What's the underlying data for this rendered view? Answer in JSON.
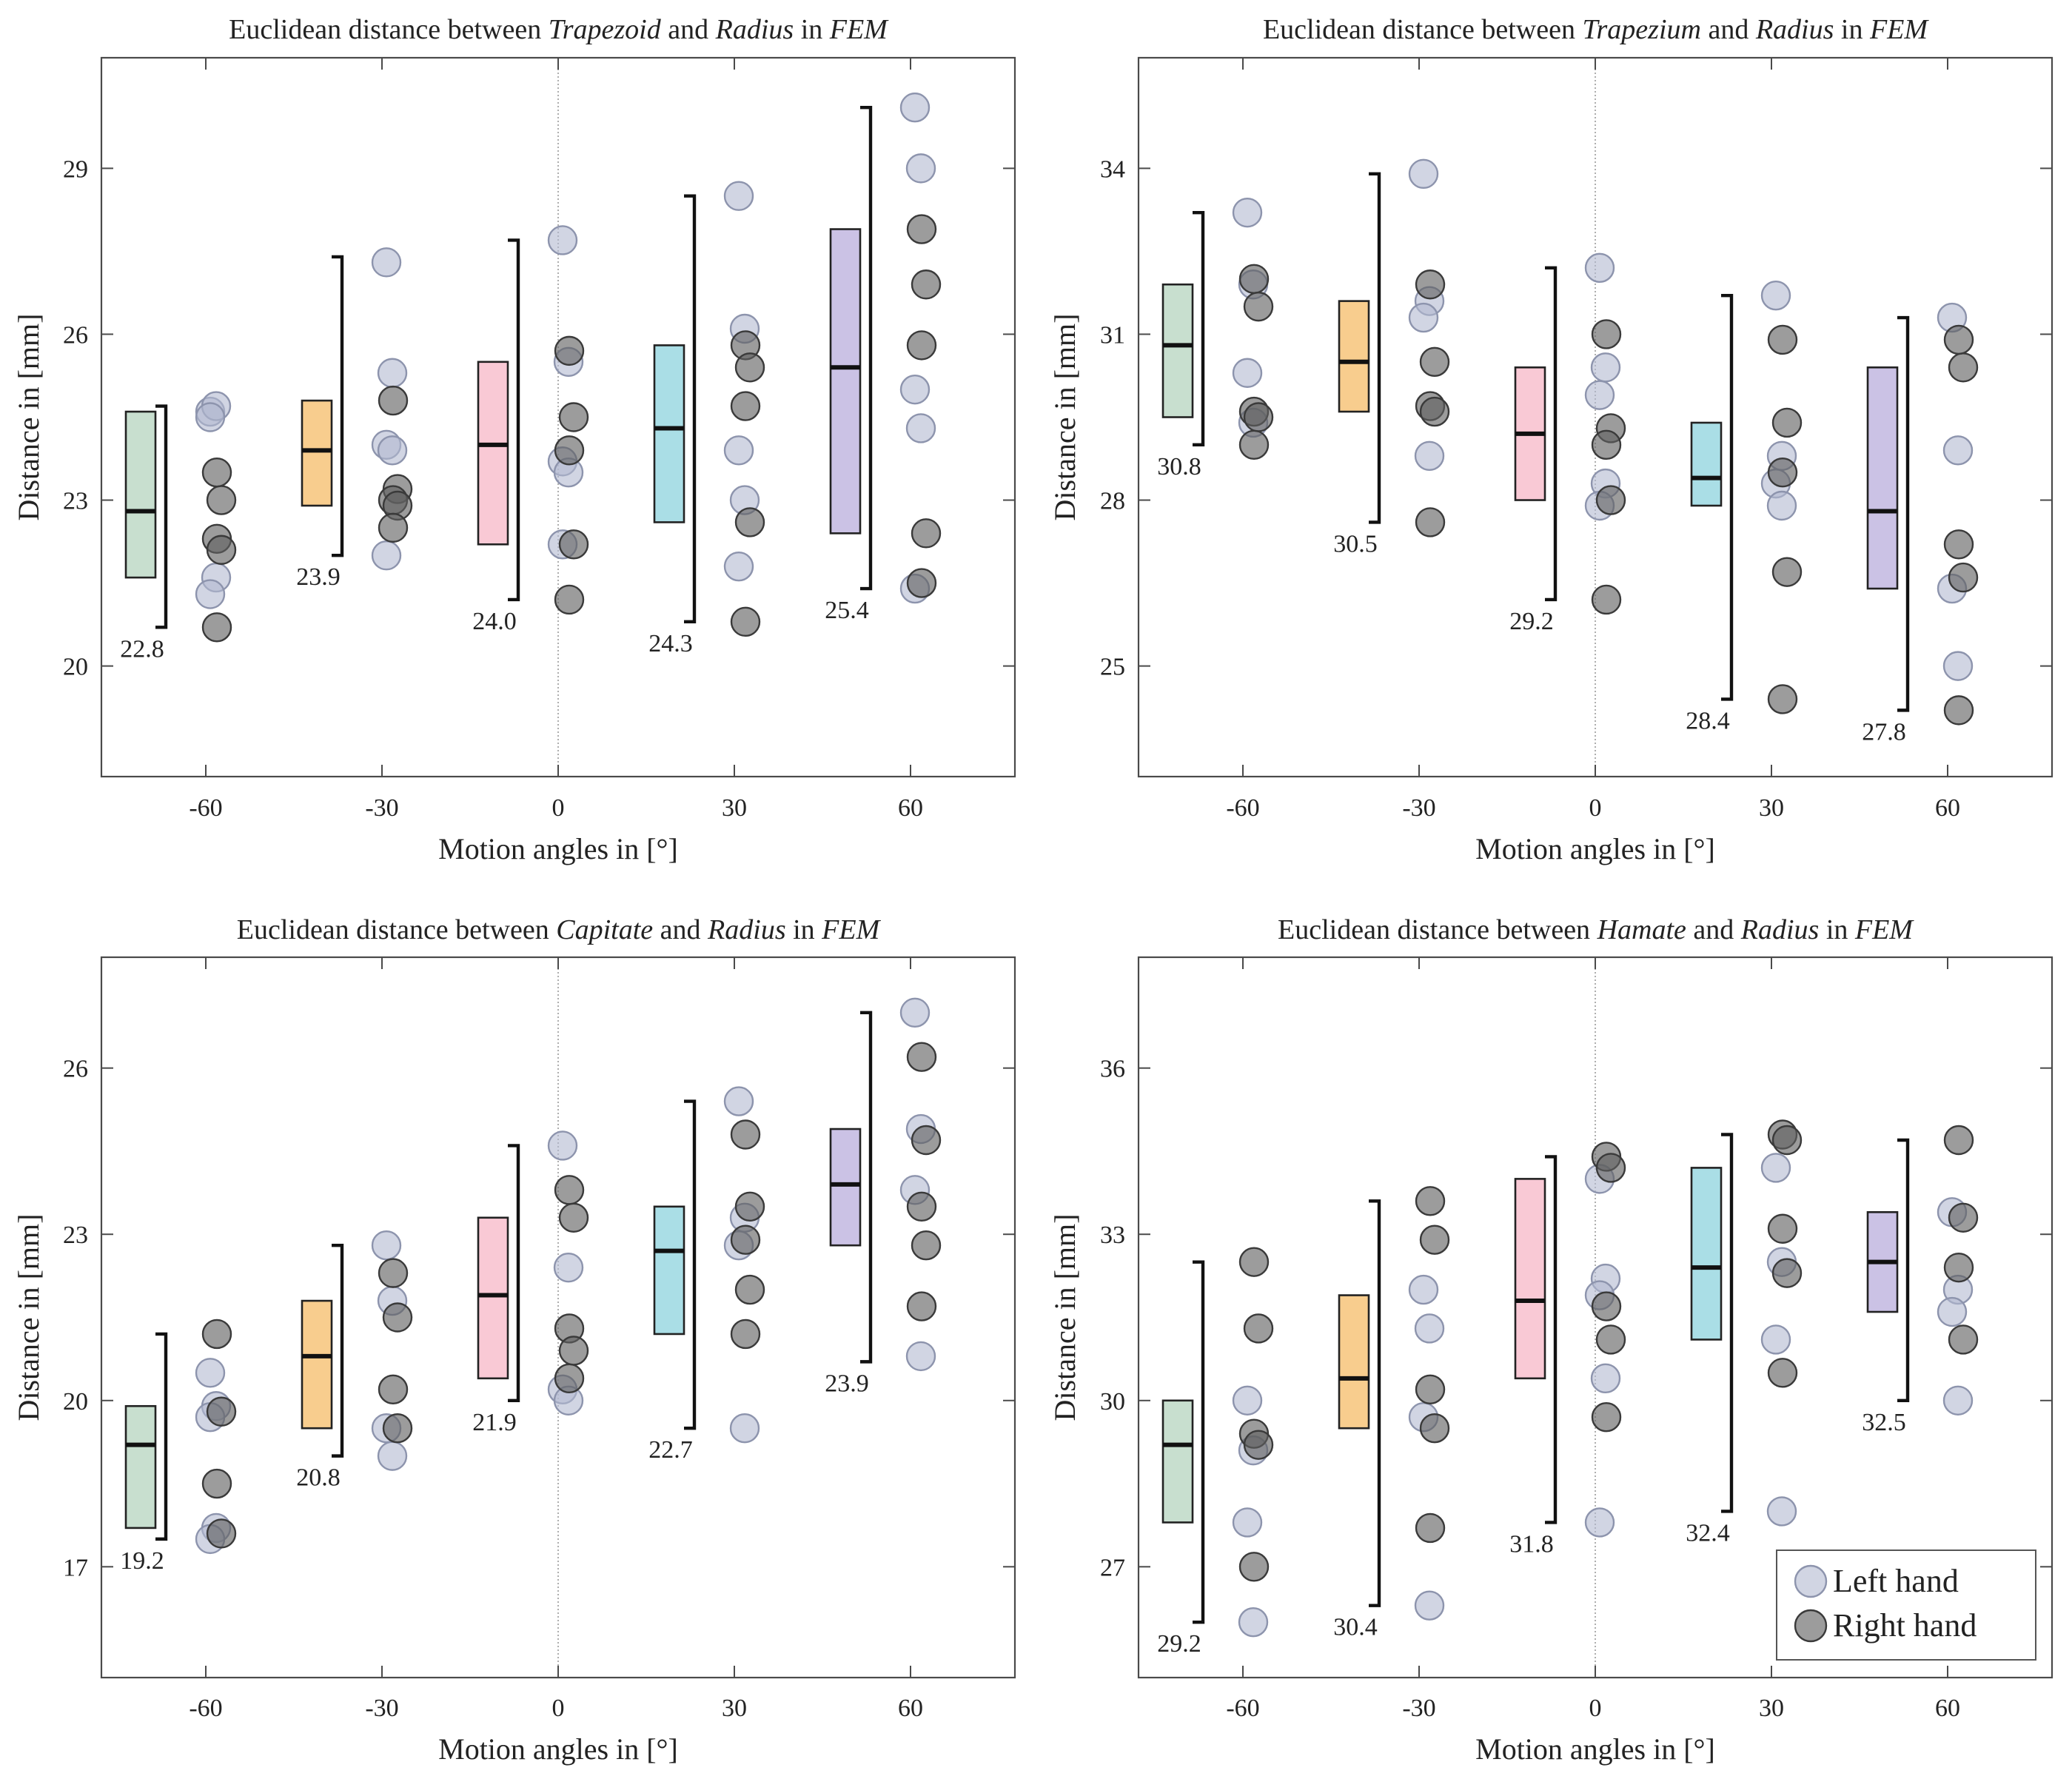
{
  "chart_data": [
    {
      "type": "box-strip",
      "title": {
        "prefix": "Euclidean distance between ",
        "bone": "Trapezoid",
        "mid": " and ",
        "ref": "Radius",
        "in": " in ",
        "model": "FEM"
      },
      "xlabel": "Motion angles in [°]",
      "ylabel": "Distance in [mm]",
      "xticks": [
        -60,
        -30,
        0,
        30,
        60
      ],
      "yticks": [
        20,
        23,
        26,
        29
      ],
      "ylim": [
        18,
        31
      ],
      "groups": [
        {
          "angle": -60,
          "color": "#c8dfcf",
          "q1": 21.6,
          "q3": 24.6,
          "median": 22.8,
          "wlow": 20.7,
          "whigh": 24.7,
          "label": "22.8",
          "left": [
            24.6,
            24.7,
            24.5,
            21.6,
            21.3
          ],
          "right": [
            23.5,
            23.0,
            22.3,
            22.1,
            20.7
          ]
        },
        {
          "angle": -30,
          "color": "#f8cd8e",
          "q1": 22.9,
          "q3": 24.8,
          "median": 23.9,
          "wlow": 22.0,
          "whigh": 27.4,
          "label": "23.9",
          "left": [
            27.3,
            25.3,
            24.0,
            23.9,
            22.0
          ],
          "right": [
            24.8,
            23.2,
            23.0,
            22.9,
            22.5
          ]
        },
        {
          "angle": 0,
          "color": "#f9c9d5",
          "q1": 22.2,
          "q3": 25.5,
          "median": 24.0,
          "wlow": 21.2,
          "whigh": 27.7,
          "label": "24.0",
          "left": [
            27.7,
            25.5,
            23.7,
            23.5,
            22.2
          ],
          "right": [
            25.7,
            24.5,
            23.9,
            22.2,
            21.2
          ]
        },
        {
          "angle": 30,
          "color": "#aadee6",
          "q1": 22.6,
          "q3": 25.8,
          "median": 24.3,
          "wlow": 20.8,
          "whigh": 28.5,
          "label": "24.3",
          "left": [
            28.5,
            26.1,
            23.9,
            23.0,
            21.8
          ],
          "right": [
            25.8,
            25.4,
            24.7,
            22.6,
            20.8
          ]
        },
        {
          "angle": 60,
          "color": "#cbc2e5",
          "q1": 22.4,
          "q3": 27.9,
          "median": 25.4,
          "wlow": 21.4,
          "whigh": 30.1,
          "label": "25.4",
          "left": [
            30.1,
            29.0,
            25.0,
            24.3,
            21.4
          ],
          "right": [
            27.9,
            26.9,
            25.8,
            22.4,
            21.5
          ]
        }
      ]
    },
    {
      "type": "box-strip",
      "title": {
        "prefix": "Euclidean distance between ",
        "bone": "Trapezium",
        "mid": " and ",
        "ref": "Radius",
        "in": " in ",
        "model": "FEM"
      },
      "xlabel": "Motion angles in [°]",
      "ylabel": "Distance in [mm]",
      "xticks": [
        -60,
        -30,
        0,
        30,
        60
      ],
      "yticks": [
        25,
        28,
        31,
        34
      ],
      "ylim": [
        23,
        36
      ],
      "groups": [
        {
          "angle": -60,
          "color": "#c8dfcf",
          "q1": 29.5,
          "q3": 31.9,
          "median": 30.8,
          "wlow": 29.0,
          "whigh": 33.2,
          "label": "30.8",
          "left": [
            33.2,
            31.9,
            30.3,
            29.4
          ],
          "right": [
            32.0,
            31.5,
            29.6,
            29.5,
            29.0
          ]
        },
        {
          "angle": -30,
          "color": "#f8cd8e",
          "q1": 29.6,
          "q3": 31.6,
          "median": 30.5,
          "wlow": 27.6,
          "whigh": 33.9,
          "label": "30.5",
          "left": [
            33.9,
            31.6,
            31.3,
            28.8
          ],
          "right": [
            31.9,
            30.5,
            29.7,
            29.6,
            27.6
          ]
        },
        {
          "angle": 0,
          "color": "#f9c9d5",
          "q1": 28.0,
          "q3": 30.4,
          "median": 29.2,
          "wlow": 26.2,
          "whigh": 32.2,
          "label": "29.2",
          "left": [
            32.2,
            30.4,
            29.9,
            28.3,
            27.9
          ],
          "right": [
            31.0,
            29.3,
            29.0,
            28.0,
            26.2
          ]
        },
        {
          "angle": 30,
          "color": "#aadee6",
          "q1": 27.9,
          "q3": 29.4,
          "median": 28.4,
          "wlow": 24.4,
          "whigh": 31.7,
          "label": "28.4",
          "left": [
            31.7,
            28.8,
            28.3,
            27.9
          ],
          "right": [
            30.9,
            29.4,
            28.5,
            26.7,
            24.4
          ]
        },
        {
          "angle": 60,
          "color": "#cbc2e5",
          "q1": 26.4,
          "q3": 30.4,
          "median": 27.8,
          "wlow": 24.2,
          "whigh": 31.3,
          "label": "27.8",
          "left": [
            31.3,
            28.9,
            26.4,
            25.0
          ],
          "right": [
            30.9,
            30.4,
            27.2,
            26.6,
            24.2
          ]
        }
      ]
    },
    {
      "type": "box-strip",
      "title": {
        "prefix": "Euclidean distance between ",
        "bone": "Capitate",
        "mid": " and ",
        "ref": "Radius",
        "in": " in ",
        "model": "FEM"
      },
      "xlabel": "Motion angles in [°]",
      "ylabel": "Distance in [mm]",
      "xticks": [
        -60,
        -30,
        0,
        30,
        60
      ],
      "yticks": [
        17,
        20,
        23,
        26
      ],
      "ylim": [
        15,
        28
      ],
      "groups": [
        {
          "angle": -60,
          "color": "#c8dfcf",
          "q1": 17.7,
          "q3": 19.9,
          "median": 19.2,
          "wlow": 17.5,
          "whigh": 21.2,
          "label": "19.2",
          "left": [
            20.5,
            19.9,
            19.7,
            17.7,
            17.5
          ],
          "right": [
            21.2,
            19.8,
            18.5,
            17.6
          ]
        },
        {
          "angle": -30,
          "color": "#f8cd8e",
          "q1": 19.5,
          "q3": 21.8,
          "median": 20.8,
          "wlow": 19.0,
          "whigh": 22.8,
          "label": "20.8",
          "left": [
            22.8,
            21.8,
            19.5,
            19.0
          ],
          "right": [
            22.3,
            21.5,
            20.2,
            19.5
          ]
        },
        {
          "angle": 0,
          "color": "#f9c9d5",
          "q1": 20.4,
          "q3": 23.3,
          "median": 21.9,
          "wlow": 20.0,
          "whigh": 24.6,
          "label": "21.9",
          "left": [
            24.6,
            22.4,
            20.2,
            20.0
          ],
          "right": [
            23.8,
            23.3,
            21.3,
            20.9,
            20.4
          ]
        },
        {
          "angle": 30,
          "color": "#aadee6",
          "q1": 21.2,
          "q3": 23.5,
          "median": 22.7,
          "wlow": 19.5,
          "whigh": 25.4,
          "label": "22.7",
          "left": [
            25.4,
            23.3,
            22.8,
            19.5
          ],
          "right": [
            24.8,
            23.5,
            22.9,
            22.0,
            21.2
          ]
        },
        {
          "angle": 60,
          "color": "#cbc2e5",
          "q1": 22.8,
          "q3": 24.9,
          "median": 23.9,
          "wlow": 20.7,
          "whigh": 27.0,
          "label": "23.9",
          "left": [
            27.0,
            24.9,
            23.8,
            20.8
          ],
          "right": [
            26.2,
            24.7,
            23.5,
            22.8,
            21.7
          ]
        }
      ]
    },
    {
      "type": "box-strip",
      "title": {
        "prefix": "Euclidean distance between ",
        "bone": "Hamate",
        "mid": " and ",
        "ref": "Radius",
        "in": " in ",
        "model": "FEM"
      },
      "xlabel": "Motion angles in [°]",
      "ylabel": "Distance in [mm]",
      "xticks": [
        -60,
        -30,
        0,
        30,
        60
      ],
      "yticks": [
        27,
        30,
        33,
        36
      ],
      "ylim": [
        25,
        38
      ],
      "legend": {
        "position": "bottom-right",
        "entries": [
          "Left hand",
          "Right hand"
        ]
      },
      "groups": [
        {
          "angle": -60,
          "color": "#c8dfcf",
          "q1": 27.8,
          "q3": 30.0,
          "median": 29.2,
          "wlow": 26.0,
          "whigh": 32.5,
          "label": "29.2",
          "left": [
            30.0,
            29.1,
            27.8,
            26.0
          ],
          "right": [
            32.5,
            31.3,
            29.4,
            29.2,
            27.0
          ]
        },
        {
          "angle": -30,
          "color": "#f8cd8e",
          "q1": 29.5,
          "q3": 31.9,
          "median": 30.4,
          "wlow": 26.3,
          "whigh": 33.6,
          "label": "30.4",
          "left": [
            32.0,
            31.3,
            29.7,
            26.3
          ],
          "right": [
            33.6,
            32.9,
            30.2,
            29.5,
            27.7
          ]
        },
        {
          "angle": 0,
          "color": "#f9c9d5",
          "q1": 30.4,
          "q3": 34.0,
          "median": 31.8,
          "wlow": 27.8,
          "whigh": 34.4,
          "label": "31.8",
          "left": [
            34.0,
            32.2,
            31.9,
            30.4,
            27.8
          ],
          "right": [
            34.4,
            34.2,
            31.7,
            31.1,
            29.7
          ]
        },
        {
          "angle": 30,
          "color": "#aadee6",
          "q1": 31.1,
          "q3": 34.2,
          "median": 32.4,
          "wlow": 28.0,
          "whigh": 34.8,
          "label": "32.4",
          "left": [
            34.2,
            32.5,
            31.1,
            28.0
          ],
          "right": [
            34.8,
            34.7,
            33.1,
            32.3,
            30.5
          ]
        },
        {
          "angle": 60,
          "color": "#cbc2e5",
          "q1": 31.6,
          "q3": 33.4,
          "median": 32.5,
          "wlow": 30.0,
          "whigh": 34.7,
          "label": "32.5",
          "left": [
            33.4,
            32.0,
            31.6,
            30.0
          ],
          "right": [
            34.7,
            33.3,
            32.4,
            31.1
          ]
        }
      ]
    }
  ]
}
